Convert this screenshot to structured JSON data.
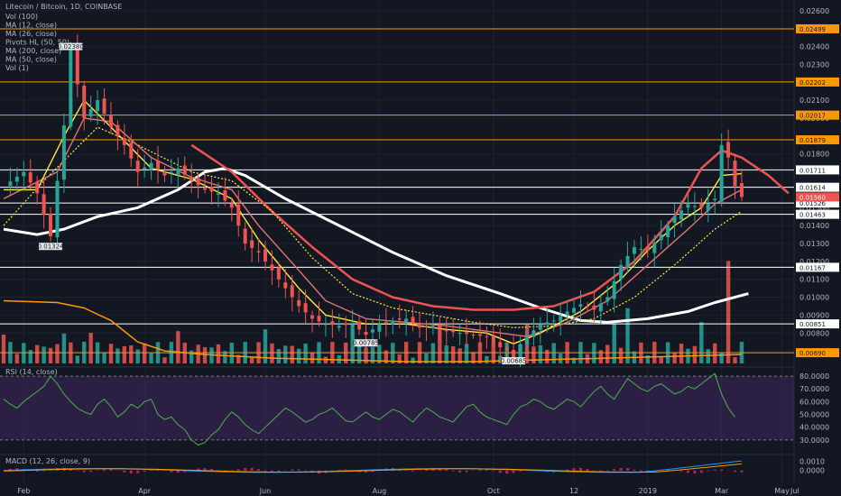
{
  "header": {
    "title": "Litecoin / Bitcoin, 1D, COINBASE"
  },
  "legend": [
    "Vol (100)",
    "MA (12, close)",
    "MA (26, close)",
    "Pivots HL (50, 50)",
    "MA (200, close)",
    "MA (50, close)",
    "Vol (1)"
  ],
  "colors": {
    "background": "#131722",
    "bull": "#26a69a",
    "bear": "#ef5350",
    "ma12": "#ffeb3b",
    "ma26": "#ef5350",
    "ma50": "#ffeb3b",
    "ma200": "#ffffff",
    "slow_ma": "#ff9800",
    "hline_white": "#ffffff",
    "hline_orange": "#ff9800",
    "rsi_line": "#4caf50",
    "rsi_band": "#4a2d6e",
    "macd_line": "#2196f3",
    "macd_signal": "#ff9800",
    "macd_hist": "#e91e63",
    "current_price": "#ef5350"
  },
  "chart_data": [
    {
      "type": "candlestick",
      "title": "Litecoin / Bitcoin, 1D, COINBASE",
      "x_ticks": [
        "Feb",
        "Apr",
        "Jun",
        "Aug",
        "Oct",
        "12",
        "2019",
        "Mar",
        "May",
        "Jul"
      ],
      "y_ticks": [
        "0.02600",
        "0.02400",
        "0.02300",
        "0.02100",
        "0.02000",
        "0.01800",
        "0.01700",
        "0.01500",
        "0.01400",
        "0.01300",
        "0.01200",
        "0.01100",
        "0.01000",
        "0.00900",
        "0.00800",
        "0.00700"
      ],
      "ylim": [
        0.0062,
        0.0266
      ],
      "horizontal_levels": [
        {
          "value": 0.02499,
          "label": "0.02499",
          "color": "#ff9800"
        },
        {
          "value": 0.02202,
          "label": "0.02202",
          "color": "#ff9800"
        },
        {
          "value": 0.02017,
          "label": "0.02017",
          "color": "#ff9800"
        },
        {
          "value": 0.01879,
          "label": "0.01879",
          "color": "#ff9800"
        },
        {
          "value": 0.01711,
          "label": "0.01711",
          "color": "#ffffff"
        },
        {
          "value": 0.01614,
          "label": "0.01614",
          "color": "#ffffff"
        },
        {
          "value": 0.01526,
          "label": "0.01526",
          "color": "#ffffff"
        },
        {
          "value": 0.01463,
          "label": "0.01463",
          "color": "#ffffff"
        },
        {
          "value": 0.01167,
          "label": "0.01167",
          "color": "#ffffff"
        },
        {
          "value": 0.00851,
          "label": "0.00851",
          "color": "#ffffff"
        },
        {
          "value": 0.0069,
          "label": "0.00690",
          "color": "#ff9800"
        }
      ],
      "current_price": {
        "value": 0.0156,
        "label": "0.01560"
      },
      "pivot_labels": [
        {
          "label": "0.01324",
          "date_index": 7
        },
        {
          "label": "0.02380",
          "date_index": 10
        },
        {
          "label": "0.00785",
          "date_index": 54
        },
        {
          "label": "0.00685",
          "date_index": 76
        }
      ],
      "price_path": [
        [
          0,
          0.0162
        ],
        [
          3,
          0.017
        ],
        [
          5,
          0.0158
        ],
        [
          7,
          0.0134
        ],
        [
          9,
          0.0196
        ],
        [
          10,
          0.0238
        ],
        [
          12,
          0.02
        ],
        [
          14,
          0.021
        ],
        [
          16,
          0.0195
        ],
        [
          18,
          0.0185
        ],
        [
          20,
          0.017
        ],
        [
          22,
          0.0175
        ],
        [
          24,
          0.0168
        ],
        [
          26,
          0.0172
        ],
        [
          28,
          0.0165
        ],
        [
          30,
          0.016
        ],
        [
          32,
          0.0158
        ],
        [
          34,
          0.015
        ],
        [
          36,
          0.013
        ],
        [
          38,
          0.0125
        ],
        [
          40,
          0.0115
        ],
        [
          42,
          0.0105
        ],
        [
          44,
          0.0095
        ],
        [
          46,
          0.0088
        ],
        [
          48,
          0.0085
        ],
        [
          50,
          0.0084
        ],
        [
          52,
          0.0085
        ],
        [
          54,
          0.0079
        ],
        [
          56,
          0.0085
        ],
        [
          58,
          0.0087
        ],
        [
          60,
          0.0088
        ],
        [
          62,
          0.0083
        ],
        [
          64,
          0.0084
        ],
        [
          66,
          0.0081
        ],
        [
          68,
          0.008
        ],
        [
          70,
          0.0079
        ],
        [
          72,
          0.0078
        ],
        [
          74,
          0.0072
        ],
        [
          76,
          0.0069
        ],
        [
          78,
          0.0078
        ],
        [
          80,
          0.0085
        ],
        [
          82,
          0.0087
        ],
        [
          84,
          0.0092
        ],
        [
          86,
          0.0096
        ],
        [
          88,
          0.0093
        ],
        [
          90,
          0.01
        ],
        [
          92,
          0.0118
        ],
        [
          94,
          0.0128
        ],
        [
          96,
          0.0126
        ],
        [
          98,
          0.0135
        ],
        [
          100,
          0.0145
        ],
        [
          102,
          0.0152
        ],
        [
          104,
          0.015
        ],
        [
          106,
          0.0155
        ],
        [
          107,
          0.0185
        ],
        [
          108,
          0.0178
        ],
        [
          109,
          0.0162
        ],
        [
          110,
          0.0156
        ]
      ],
      "ma12_path": [
        [
          0,
          0.016
        ],
        [
          5,
          0.016
        ],
        [
          9,
          0.019
        ],
        [
          12,
          0.021
        ],
        [
          16,
          0.0195
        ],
        [
          22,
          0.0172
        ],
        [
          28,
          0.0166
        ],
        [
          34,
          0.0155
        ],
        [
          38,
          0.0132
        ],
        [
          44,
          0.0105
        ],
        [
          48,
          0.009
        ],
        [
          54,
          0.0085
        ],
        [
          60,
          0.0085
        ],
        [
          66,
          0.0082
        ],
        [
          72,
          0.008
        ],
        [
          76,
          0.0074
        ],
        [
          80,
          0.008
        ],
        [
          86,
          0.0092
        ],
        [
          92,
          0.011
        ],
        [
          96,
          0.0126
        ],
        [
          100,
          0.014
        ],
        [
          104,
          0.015
        ],
        [
          107,
          0.0168
        ],
        [
          110,
          0.0169
        ]
      ],
      "ma26_path": [
        [
          0,
          0.0155
        ],
        [
          8,
          0.017
        ],
        [
          12,
          0.02
        ],
        [
          16,
          0.0198
        ],
        [
          22,
          0.0178
        ],
        [
          28,
          0.0167
        ],
        [
          34,
          0.016
        ],
        [
          38,
          0.014
        ],
        [
          44,
          0.0115
        ],
        [
          48,
          0.0098
        ],
        [
          54,
          0.0088
        ],
        [
          60,
          0.0086
        ],
        [
          66,
          0.0084
        ],
        [
          72,
          0.0081
        ],
        [
          78,
          0.0078
        ],
        [
          84,
          0.0086
        ],
        [
          90,
          0.0098
        ],
        [
          96,
          0.0118
        ],
        [
          102,
          0.0138
        ],
        [
          106,
          0.0152
        ],
        [
          110,
          0.016
        ]
      ],
      "ma50_path": [
        [
          0,
          0.014
        ],
        [
          6,
          0.0165
        ],
        [
          14,
          0.0195
        ],
        [
          20,
          0.0185
        ],
        [
          28,
          0.017
        ],
        [
          34,
          0.0165
        ],
        [
          40,
          0.0148
        ],
        [
          46,
          0.0122
        ],
        [
          52,
          0.0102
        ],
        [
          58,
          0.0094
        ],
        [
          64,
          0.009
        ],
        [
          70,
          0.0086
        ],
        [
          76,
          0.0083
        ],
        [
          82,
          0.0084
        ],
        [
          88,
          0.0088
        ],
        [
          94,
          0.01
        ],
        [
          100,
          0.0118
        ],
        [
          106,
          0.0138
        ],
        [
          110,
          0.0148
        ]
      ],
      "ma200_path": [
        [
          0,
          0.0138
        ],
        [
          5,
          0.0135
        ],
        [
          9,
          0.0138
        ],
        [
          14,
          0.0145
        ],
        [
          20,
          0.015
        ],
        [
          26,
          0.016
        ],
        [
          30,
          0.017
        ],
        [
          33,
          0.0172
        ],
        [
          36,
          0.0168
        ],
        [
          42,
          0.0155
        ],
        [
          50,
          0.014
        ],
        [
          58,
          0.0125
        ],
        [
          66,
          0.0112
        ],
        [
          74,
          0.0102
        ],
        [
          80,
          0.0094
        ],
        [
          86,
          0.0087
        ],
        [
          90,
          0.0086
        ],
        [
          96,
          0.0088
        ],
        [
          102,
          0.0092
        ],
        [
          106,
          0.0097
        ],
        [
          111,
          0.0102
        ]
      ],
      "red_ma_path": [
        [
          28,
          0.0185
        ],
        [
          34,
          0.017
        ],
        [
          40,
          0.0148
        ],
        [
          46,
          0.0128
        ],
        [
          52,
          0.011
        ],
        [
          58,
          0.01
        ],
        [
          64,
          0.0095
        ],
        [
          70,
          0.0093
        ],
        [
          76,
          0.0093
        ],
        [
          82,
          0.0095
        ],
        [
          88,
          0.0103
        ],
        [
          94,
          0.012
        ],
        [
          100,
          0.0145
        ],
        [
          104,
          0.0172
        ],
        [
          107,
          0.0182
        ],
        [
          110,
          0.0178
        ],
        [
          114,
          0.0168
        ],
        [
          117,
          0.0158
        ]
      ],
      "slow_ma_path": [
        [
          0,
          0.0098
        ],
        [
          8,
          0.0097
        ],
        [
          12,
          0.0094
        ],
        [
          16,
          0.0087
        ],
        [
          20,
          0.0075
        ],
        [
          24,
          0.007
        ],
        [
          30,
          0.0068
        ],
        [
          40,
          0.0066
        ],
        [
          50,
          0.0065
        ],
        [
          60,
          0.0064
        ],
        [
          70,
          0.0064
        ],
        [
          80,
          0.0065
        ],
        [
          90,
          0.0066
        ],
        [
          100,
          0.0067
        ],
        [
          110,
          0.0068
        ]
      ]
    },
    {
      "type": "line",
      "title": "RSI (14, close)",
      "y_ticks": [
        "80.0000",
        "70.0000",
        "60.0000",
        "50.0000",
        "40.0000",
        "30.0000"
      ],
      "ylim": [
        20,
        85
      ],
      "band": [
        30,
        80
      ],
      "values": [
        62,
        58,
        55,
        60,
        64,
        68,
        72,
        80,
        74,
        66,
        60,
        55,
        52,
        50,
        58,
        62,
        56,
        48,
        52,
        58,
        55,
        60,
        62,
        50,
        46,
        48,
        42,
        38,
        30,
        26,
        28,
        34,
        38,
        46,
        52,
        48,
        42,
        38,
        35,
        40,
        45,
        50,
        55,
        52,
        48,
        44,
        46,
        50,
        52,
        55,
        50,
        45,
        44,
        48,
        52,
        48,
        46,
        50,
        54,
        52,
        48,
        44,
        50,
        55,
        52,
        48,
        46,
        44,
        50,
        56,
        58,
        52,
        48,
        46,
        44,
        42,
        50,
        56,
        58,
        62,
        60,
        56,
        54,
        58,
        62,
        60,
        56,
        62,
        68,
        72,
        66,
        62,
        70,
        78,
        74,
        70,
        68,
        72,
        74,
        70,
        66,
        68,
        72,
        70,
        74,
        78,
        82,
        66,
        55,
        48
      ]
    },
    {
      "type": "line",
      "title": "MACD (12, 26, close, 9)",
      "y_ticks": [
        "0.0010",
        "0.0000"
      ],
      "ylim": [
        -0.0008,
        0.0016
      ]
    }
  ]
}
